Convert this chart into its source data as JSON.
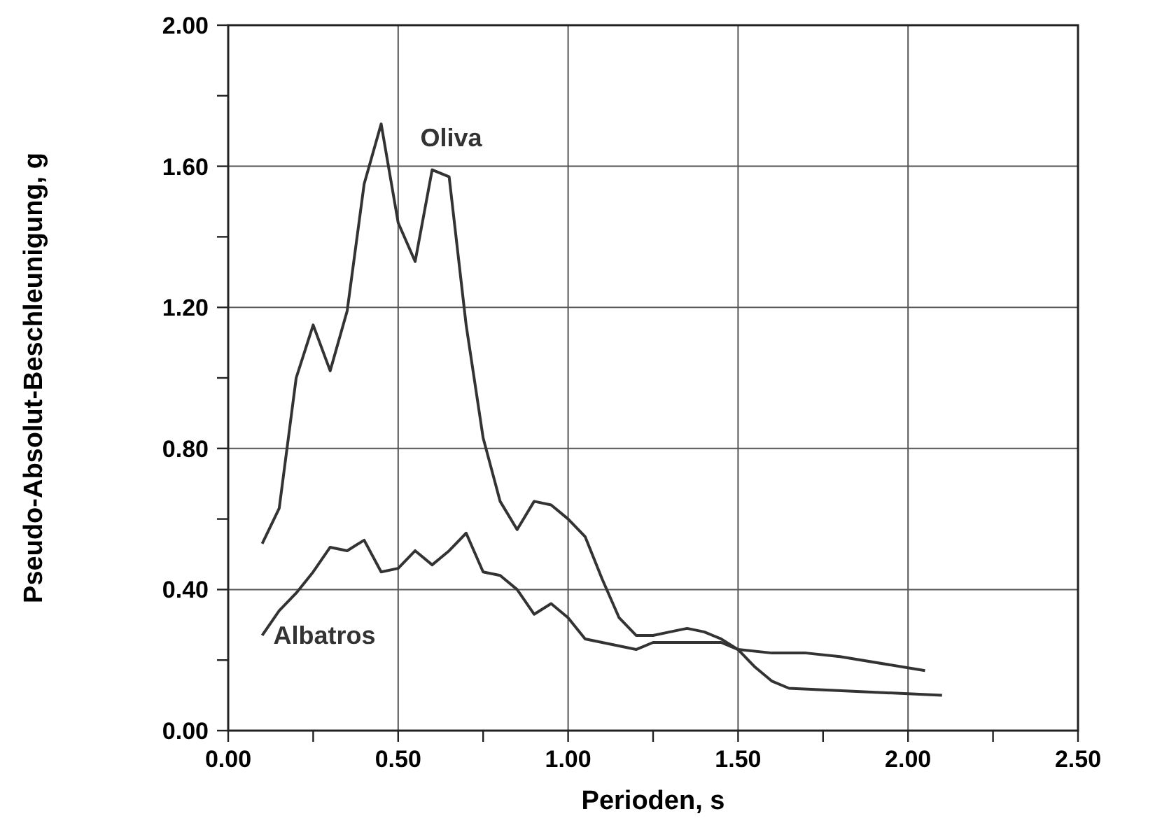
{
  "chart_data": {
    "type": "line",
    "xlabel": "Perioden, s",
    "ylabel": "Pseudo-Absolut-Beschleunigung, g",
    "xlim": [
      0,
      2.5
    ],
    "ylim": [
      0,
      2
    ],
    "xticks": [
      {
        "value": 0,
        "label": "0.00"
      },
      {
        "value": 0.25,
        "label": null
      },
      {
        "value": 0.5,
        "label": "0.50"
      },
      {
        "value": 0.75,
        "label": null
      },
      {
        "value": 1,
        "label": "1.00"
      },
      {
        "value": 1.25,
        "label": null
      },
      {
        "value": 1.5,
        "label": "1.50"
      },
      {
        "value": 1.75,
        "label": null
      },
      {
        "value": 2,
        "label": "2.00"
      },
      {
        "value": 2.25,
        "label": null
      },
      {
        "value": 2.5,
        "label": "2.50"
      }
    ],
    "yticks": [
      {
        "value": 0,
        "label": "0.00"
      },
      {
        "value": 0.2,
        "label": null
      },
      {
        "value": 0.4,
        "label": "0.40"
      },
      {
        "value": 0.6,
        "label": null
      },
      {
        "value": 0.8,
        "label": "0.80"
      },
      {
        "value": 1,
        "label": null
      },
      {
        "value": 1.2,
        "label": "1.20"
      },
      {
        "value": 1.4,
        "label": null
      },
      {
        "value": 1.6,
        "label": "1.60"
      },
      {
        "value": 1.8,
        "label": null
      },
      {
        "value": 2,
        "label": "2.00"
      }
    ],
    "grid": true,
    "marker": "none",
    "line_style": "solid",
    "series": [
      {
        "name": "Oliva",
        "color": "#333333",
        "x": [
          0.1,
          0.15,
          0.2,
          0.25,
          0.3,
          0.35,
          0.4,
          0.45,
          0.5,
          0.55,
          0.6,
          0.65,
          0.7,
          0.75,
          0.8,
          0.85,
          0.9,
          0.95,
          1.0,
          1.05,
          1.1,
          1.15,
          1.2,
          1.25,
          1.3,
          1.35,
          1.4,
          1.45,
          1.5,
          1.55,
          1.6,
          1.65,
          2.1
        ],
        "values": [
          0.53,
          0.63,
          1.0,
          1.15,
          1.02,
          1.19,
          1.55,
          1.72,
          1.44,
          1.33,
          1.59,
          1.57,
          1.15,
          0.83,
          0.65,
          0.57,
          0.65,
          0.64,
          0.6,
          0.55,
          0.43,
          0.32,
          0.27,
          0.27,
          0.28,
          0.29,
          0.28,
          0.26,
          0.23,
          0.18,
          0.14,
          0.12,
          0.1
        ]
      },
      {
        "name": "Albatros",
        "color": "#333333",
        "x": [
          0.1,
          0.15,
          0.2,
          0.25,
          0.3,
          0.35,
          0.4,
          0.45,
          0.5,
          0.55,
          0.6,
          0.65,
          0.7,
          0.75,
          0.8,
          0.85,
          0.9,
          0.95,
          1.0,
          1.05,
          1.1,
          1.15,
          1.2,
          1.25,
          1.35,
          1.45,
          1.5,
          1.6,
          1.7,
          1.8,
          2.05
        ],
        "values": [
          0.27,
          0.34,
          0.39,
          0.45,
          0.52,
          0.51,
          0.54,
          0.45,
          0.46,
          0.51,
          0.47,
          0.51,
          0.56,
          0.45,
          0.44,
          0.4,
          0.33,
          0.36,
          0.32,
          0.26,
          0.25,
          0.24,
          0.23,
          0.25,
          0.25,
          0.25,
          0.23,
          0.22,
          0.22,
          0.21,
          0.17
        ]
      }
    ]
  }
}
